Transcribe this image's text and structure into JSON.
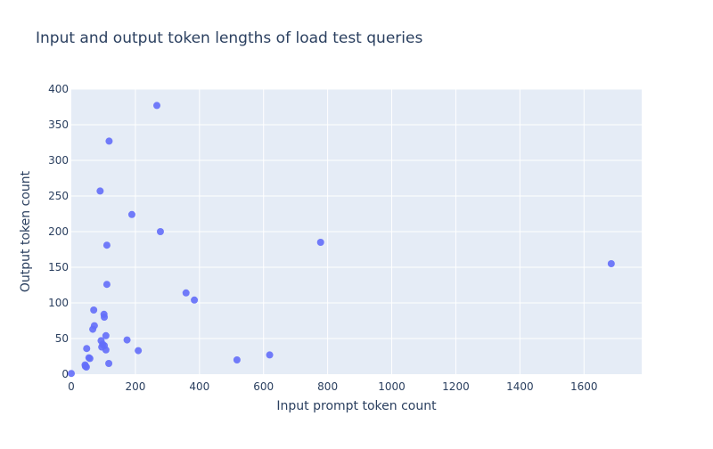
{
  "chart_data": {
    "type": "scatter",
    "title": "Input and output token lengths of load test queries",
    "xlabel": "Input prompt token count",
    "ylabel": "Output token count",
    "xlim": [
      0,
      1780
    ],
    "ylim": [
      0,
      400
    ],
    "x_ticks": [
      0,
      200,
      400,
      600,
      800,
      1000,
      1200,
      1400,
      1600
    ],
    "y_ticks": [
      0,
      50,
      100,
      150,
      200,
      250,
      300,
      350,
      400
    ],
    "grid": true,
    "marker_color": "#636efa",
    "plot_bg": "#e5ecf6",
    "grid_color": "#ffffff",
    "points": [
      {
        "x": 267,
        "y": 377
      },
      {
        "x": 118,
        "y": 327
      },
      {
        "x": 90,
        "y": 257
      },
      {
        "x": 189,
        "y": 224
      },
      {
        "x": 278,
        "y": 200
      },
      {
        "x": 111,
        "y": 181
      },
      {
        "x": 778,
        "y": 185
      },
      {
        "x": 1685,
        "y": 155
      },
      {
        "x": 111,
        "y": 126
      },
      {
        "x": 358,
        "y": 114
      },
      {
        "x": 384,
        "y": 104
      },
      {
        "x": 70,
        "y": 90
      },
      {
        "x": 102,
        "y": 84
      },
      {
        "x": 103,
        "y": 80
      },
      {
        "x": 72,
        "y": 68
      },
      {
        "x": 67,
        "y": 63
      },
      {
        "x": 108,
        "y": 54
      },
      {
        "x": 174,
        "y": 48
      },
      {
        "x": 93,
        "y": 47
      },
      {
        "x": 98,
        "y": 42
      },
      {
        "x": 103,
        "y": 40
      },
      {
        "x": 95,
        "y": 38
      },
      {
        "x": 48,
        "y": 36
      },
      {
        "x": 108,
        "y": 34
      },
      {
        "x": 209,
        "y": 33
      },
      {
        "x": 619,
        "y": 27
      },
      {
        "x": 55,
        "y": 23
      },
      {
        "x": 58,
        "y": 22
      },
      {
        "x": 517,
        "y": 20
      },
      {
        "x": 117,
        "y": 15
      },
      {
        "x": 43,
        "y": 13
      },
      {
        "x": 44,
        "y": 11
      },
      {
        "x": 47,
        "y": 10
      },
      {
        "x": 0,
        "y": 1
      }
    ]
  }
}
